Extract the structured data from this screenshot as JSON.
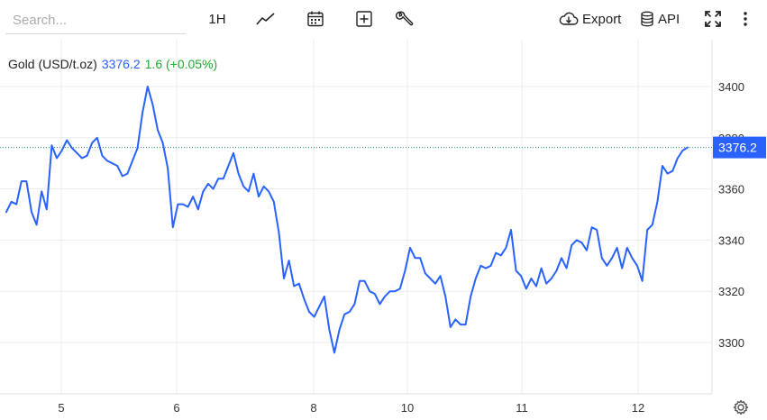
{
  "toolbar": {
    "search_placeholder": "Search...",
    "interval_label": "1H",
    "export_label": "Export",
    "api_label": "API",
    "icons": [
      "line-chart-icon",
      "calendar-icon",
      "add-indicator-icon",
      "wrench-icon",
      "cloud-download-icon",
      "database-icon",
      "fullscreen-icon",
      "more-vertical-icon",
      "gear-icon"
    ]
  },
  "legend": {
    "symbol": "Gold (USD/t.oz)",
    "price": "3376.2",
    "change": "1.6 (+0.05%)"
  },
  "price_tag": "3376.2",
  "colors": {
    "line": "#2962ff",
    "change": "#22ab2e",
    "price_tag_bg": "#2962ff",
    "last_price_line": "#1e8f6f",
    "grid": "#ececec"
  },
  "chart_data": {
    "type": "line",
    "xlabel": "",
    "ylabel": "",
    "x_ticks": [
      "5",
      "6",
      "8",
      "10",
      "11",
      "12"
    ],
    "y_ticks": [
      3300,
      3320,
      3340,
      3360,
      3380,
      3400
    ],
    "ylim": [
      3285,
      3412
    ],
    "grid": true,
    "last_price": 3376.2,
    "series": [
      {
        "name": "Gold (USD/t.oz)",
        "values": [
          3351,
          3355,
          3354,
          3363,
          3363,
          3351,
          3346,
          3359,
          3352,
          3377,
          3372,
          3375,
          3379,
          3376,
          3374,
          3372,
          3373,
          3378,
          3380,
          3373,
          3371,
          3370,
          3369,
          3365,
          3366,
          3371,
          3376,
          3390,
          3400,
          3393,
          3383,
          3378,
          3368,
          3345,
          3354,
          3354,
          3353,
          3357,
          3352,
          3359,
          3362,
          3360,
          3364,
          3364,
          3369,
          3374,
          3366,
          3361,
          3359,
          3366,
          3357,
          3361,
          3359,
          3355,
          3343,
          3325,
          3332,
          3322,
          3323,
          3317,
          3312,
          3310,
          3314,
          3318,
          3305,
          3296,
          3305,
          3311,
          3312,
          3315,
          3324,
          3324,
          3320,
          3319,
          3315,
          3318,
          3320,
          3320,
          3321,
          3328,
          3337,
          3333,
          3333,
          3327,
          3325,
          3323,
          3326,
          3318,
          3306,
          3309,
          3307,
          3307,
          3318,
          3325,
          3330,
          3329,
          3330,
          3335,
          3334,
          3337,
          3344,
          3328,
          3326,
          3321,
          3325,
          3322,
          3329,
          3323,
          3325,
          3328,
          3333,
          3329,
          3338,
          3340,
          3339,
          3336,
          3345,
          3344,
          3333,
          3330,
          3333,
          3337,
          3329,
          3337,
          3333,
          3330,
          3324,
          3344,
          3346,
          3355,
          3369,
          3366,
          3367,
          3372,
          3375,
          3376.2
        ]
      }
    ]
  }
}
